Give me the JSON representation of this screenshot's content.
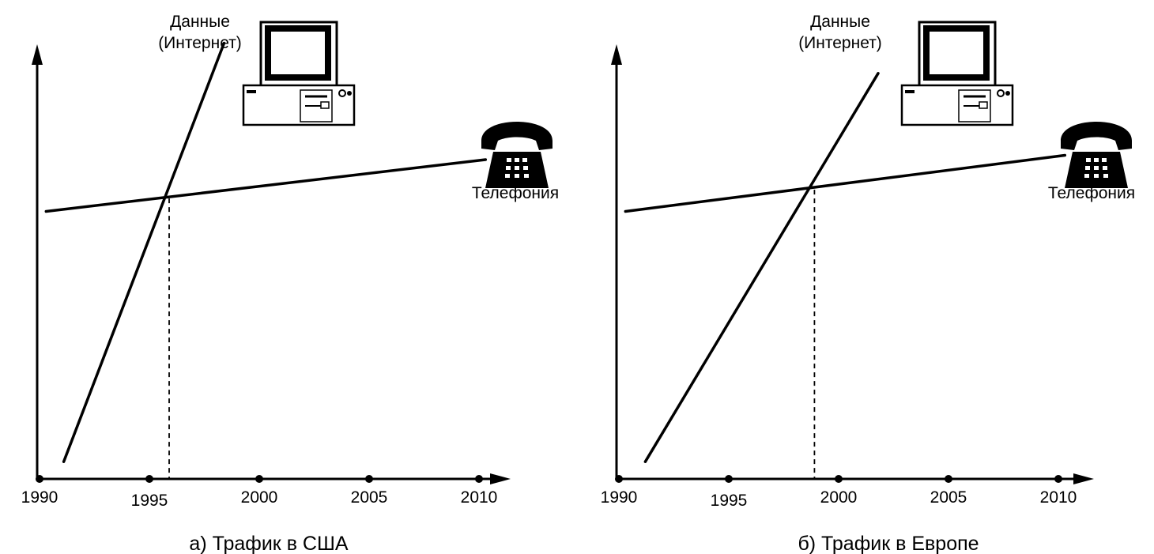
{
  "chart_data": [
    {
      "type": "line",
      "caption": "а) Трафик в США",
      "x_ticks": [
        "1990",
        "1995",
        "2000",
        "2005",
        "2010"
      ],
      "xlim": [
        1990,
        2010
      ],
      "ylim": [
        0,
        100
      ],
      "grid": false,
      "series": [
        {
          "name_lines": [
            "Данные",
            "(Интернет)"
          ],
          "icon": "computer-icon",
          "points": [
            {
              "x": 1991.1,
              "y": 4
            },
            {
              "x": 1998.4,
              "y": 101
            }
          ]
        },
        {
          "name_lines": [
            "Телефония"
          ],
          "icon": "telephone-icon",
          "points": [
            {
              "x": 1990.3,
              "y": 62
            },
            {
              "x": 2010.3,
              "y": 74
            }
          ]
        }
      ],
      "crossover_x": 1995.9,
      "crossover_y": 65
    },
    {
      "type": "line",
      "caption": "б) Трафик в Европе",
      "x_ticks": [
        "1990",
        "1995",
        "2000",
        "2005",
        "2010"
      ],
      "xlim": [
        1990,
        2010
      ],
      "ylim": [
        0,
        100
      ],
      "grid": false,
      "series": [
        {
          "name_lines": [
            "Данные",
            "(Интернет)"
          ],
          "icon": "computer-icon",
          "points": [
            {
              "x": 1991.2,
              "y": 4
            },
            {
              "x": 2001.8,
              "y": 94
            }
          ]
        },
        {
          "name_lines": [
            "Телефония"
          ],
          "icon": "telephone-icon",
          "points": [
            {
              "x": 1990.3,
              "y": 62
            },
            {
              "x": 2010.3,
              "y": 75
            }
          ]
        }
      ],
      "crossover_x": 1998.9,
      "crossover_y": 67
    }
  ]
}
